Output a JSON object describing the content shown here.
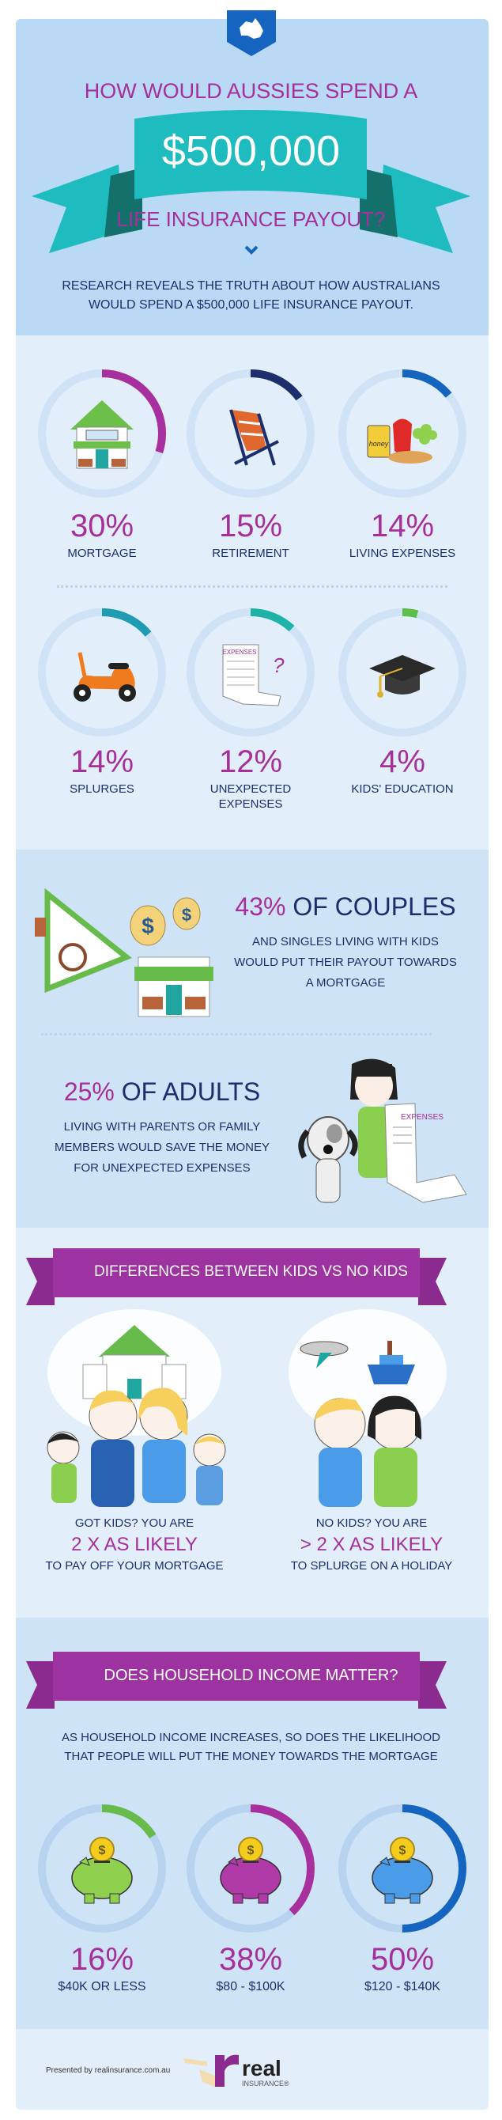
{
  "header": {
    "badge_icon": "australia-map-icon",
    "title_line1": "HOW WOULD AUSSIES SPEND A",
    "amount": "$500,000",
    "title_line2": "LIFE INSURANCE PAYOUT?",
    "chevron_icon": "chevron-down-icon",
    "subtitle_lines": [
      "RESEARCH REVEALS THE TRUTH ABOUT HOW AUSTRALIANS",
      "WOULD SPEND A $500,000 LIFE INSURANCE PAYOUT."
    ]
  },
  "spending": {
    "items": [
      {
        "pct": "30%",
        "value": 30,
        "label": "MORTGAGE",
        "color": "#a8309e",
        "icon": "house-icon"
      },
      {
        "pct": "15%",
        "value": 15,
        "label": "RETIREMENT",
        "color": "#1d2e6c",
        "icon": "deck-chair-icon"
      },
      {
        "pct": "14%",
        "value": 14,
        "label": "LIVING EXPENSES",
        "color": "#1565c0",
        "icon": "groceries-icon"
      },
      {
        "pct": "14%",
        "value": 14,
        "label": "SPLURGES",
        "color": "#1f9bb3",
        "icon": "scooter-icon"
      },
      {
        "pct": "12%",
        "value": 12,
        "label": "UNEXPECTED EXPENSES",
        "color": "#1fb3a8",
        "icon": "expenses-bill-icon"
      },
      {
        "pct": "4%",
        "value": 4,
        "label": "KIDS' EDUCATION",
        "color": "#5cbf4a",
        "icon": "graduation-cap-icon"
      }
    ],
    "bill_text": "EXPENSES",
    "jar_text": "honey"
  },
  "facts": {
    "couples": {
      "pct": "43%",
      "headline": "OF COUPLES",
      "lines": [
        "AND SINGLES LIVING WITH KIDS",
        "WOULD PUT THEIR PAYOUT TOWARDS",
        "A MORTGAGE"
      ]
    },
    "adults": {
      "pct": "25%",
      "headline": "OF ADULTS",
      "lines": [
        "LIVING WITH PARENTS OR FAMILY",
        "MEMBERS WOULD SAVE THE MONEY",
        "FOR UNEXPECTED EXPENSES"
      ],
      "bill_text": "EXPENSES"
    }
  },
  "kids": {
    "banner": "DIFFERENCES BETWEEN KIDS VS NO KIDS",
    "with_kids": {
      "intro": "GOT KIDS? YOU ARE",
      "highlight": "2 X AS LIKELY",
      "outro": "TO PAY OFF YOUR MORTGAGE"
    },
    "no_kids": {
      "intro": "NO KIDS? YOU ARE",
      "highlight": "> 2 X AS LIKELY",
      "outro": "TO SPLURGE ON A HOLIDAY"
    }
  },
  "income": {
    "banner": "DOES HOUSEHOLD INCOME MATTER?",
    "subtitle_lines": [
      "AS HOUSEHOLD INCOME INCREASES, SO DOES THE LIKELIHOOD",
      "THAT PEOPLE WILL PUT THE MONEY TOWARDS THE MORTGAGE"
    ],
    "items": [
      {
        "pct": "16%",
        "value": 16,
        "label": "$40K OR LESS",
        "color": "#66bb4a",
        "pig": "#8fd14f"
      },
      {
        "pct": "38%",
        "value": 38,
        "label": "$80 - $100K",
        "color": "#a8309e",
        "pig": "#b03aa8"
      },
      {
        "pct": "50%",
        "value": 50,
        "label": "$120 - $140K",
        "color": "#1565c0",
        "pig": "#4a9be8"
      }
    ]
  },
  "footer": {
    "presented": "Presented by realinsurance.com.au",
    "logo_word": "real",
    "logo_sub": "INSURANCE®"
  },
  "colors": {
    "accent": "#a52f9b",
    "text": "#1d2e6c",
    "ribbon": "#1fbcbf",
    "banner": "#8b2b8f"
  }
}
